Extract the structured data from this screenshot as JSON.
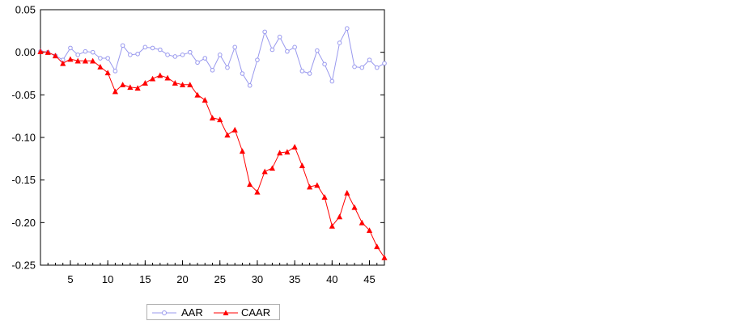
{
  "chart_data": {
    "type": "line",
    "title": "",
    "xlabel": "",
    "ylabel": "",
    "x": [
      1,
      2,
      3,
      4,
      5,
      6,
      7,
      8,
      9,
      10,
      11,
      12,
      13,
      14,
      15,
      16,
      17,
      18,
      19,
      20,
      21,
      22,
      23,
      24,
      25,
      26,
      27,
      28,
      29,
      30,
      31,
      32,
      33,
      34,
      35,
      36,
      37,
      38,
      39,
      40,
      41,
      42,
      43,
      44,
      45,
      46,
      47
    ],
    "xlim": [
      1,
      47
    ],
    "ylim": [
      -0.25,
      0.05
    ],
    "x_ticks": [
      5,
      10,
      15,
      20,
      25,
      30,
      35,
      40,
      45
    ],
    "x_tick_labels": [
      "5",
      "10",
      "15",
      "20",
      "25",
      "30",
      "35",
      "40",
      "45"
    ],
    "y_ticks": [
      0.05,
      0.0,
      -0.05,
      -0.1,
      -0.15,
      -0.2,
      -0.25
    ],
    "y_tick_labels": [
      "0.05",
      "0.00",
      "-0.05",
      "-0.10",
      "-0.15",
      "-0.20",
      "-0.25"
    ],
    "grid": false,
    "legend_position": "bottom-left",
    "series": [
      {
        "name": "AAR",
        "color": "#9999ee",
        "marker": "open-circle",
        "values": [
          0.001,
          0.0,
          -0.004,
          -0.009,
          0.005,
          -0.003,
          0.001,
          0.0,
          -0.007,
          -0.007,
          -0.022,
          0.008,
          -0.003,
          -0.002,
          0.006,
          0.005,
          0.003,
          -0.003,
          -0.005,
          -0.003,
          0.0,
          -0.012,
          -0.007,
          -0.021,
          -0.003,
          -0.018,
          0.006,
          -0.025,
          -0.039,
          -0.009,
          0.024,
          0.003,
          0.018,
          0.001,
          0.006,
          -0.022,
          -0.025,
          0.002,
          -0.014,
          -0.034,
          0.011,
          0.028,
          -0.017,
          -0.018,
          -0.009,
          -0.018,
          -0.013
        ]
      },
      {
        "name": "CAAR",
        "color": "#ff0000",
        "marker": "filled-triangle",
        "values": [
          0.001,
          0.0,
          -0.004,
          -0.013,
          -0.008,
          -0.01,
          -0.01,
          -0.01,
          -0.017,
          -0.024,
          -0.046,
          -0.038,
          -0.041,
          -0.042,
          -0.036,
          -0.031,
          -0.027,
          -0.03,
          -0.036,
          -0.038,
          -0.038,
          -0.05,
          -0.056,
          -0.077,
          -0.079,
          -0.097,
          -0.091,
          -0.116,
          -0.155,
          -0.164,
          -0.14,
          -0.136,
          -0.118,
          -0.117,
          -0.111,
          -0.133,
          -0.158,
          -0.156,
          -0.17,
          -0.204,
          -0.193,
          -0.165,
          -0.182,
          -0.2,
          -0.209,
          -0.228,
          -0.241
        ]
      }
    ]
  }
}
